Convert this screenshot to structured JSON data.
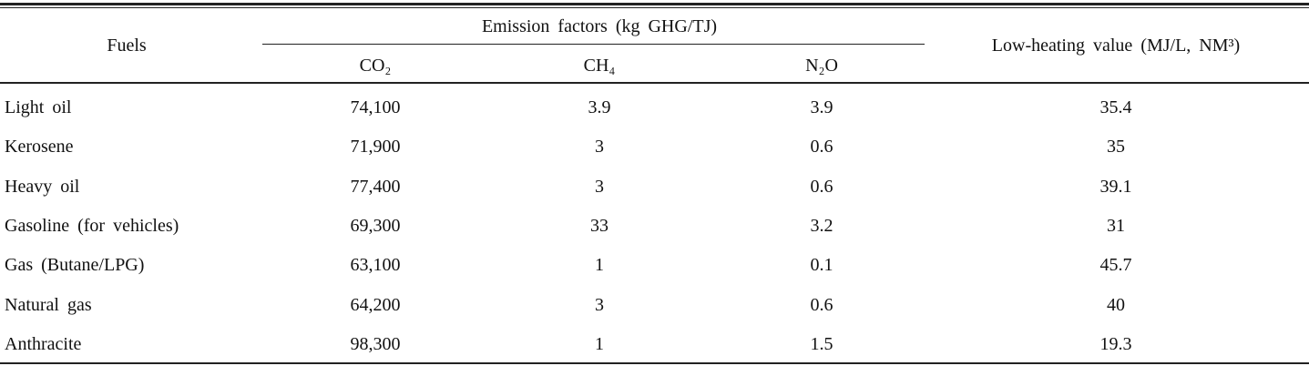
{
  "table": {
    "header": {
      "fuels": "Fuels",
      "emission_factors": "Emission factors (kg GHG/TJ)",
      "co2": "CO₂",
      "ch4": "CH₄",
      "n2o": "N₂O",
      "lhv": "Low-heating value (MJ/L, NM³)"
    },
    "rows": [
      [
        "Light oil",
        "74,100",
        "3.9",
        "3.9",
        "35.4"
      ],
      [
        "Kerosene",
        "71,900",
        "3",
        "0.6",
        "35"
      ],
      [
        "Heavy oil",
        "77,400",
        "3",
        "0.6",
        "39.1"
      ],
      [
        "Gasoline (for vehicles)",
        "69,300",
        "33",
        "3.2",
        "31"
      ],
      [
        "Gas (Butane/LPG)",
        "63,100",
        "1",
        "0.1",
        "45.7"
      ],
      [
        "Natural gas",
        "64,200",
        "3",
        "0.6",
        "40"
      ],
      [
        "Anthracite",
        "98,300",
        "1",
        "1.5",
        "19.3"
      ]
    ]
  }
}
